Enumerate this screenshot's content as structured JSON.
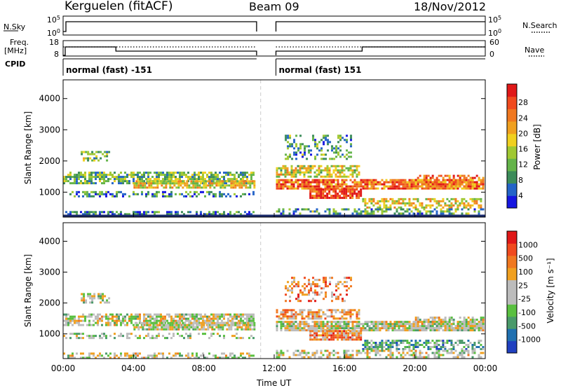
{
  "header": {
    "radar": "Kerguelen (fitACF)",
    "beam": "Beam 09",
    "date": "18/Nov/2012"
  },
  "status_panels": {
    "nsky_label": "N.Sky",
    "nsearch_label": "N.Search",
    "freq_label": "Freq.",
    "freq_unit": "[MHz]",
    "nave_label": "Nave",
    "cpid_label": "CPID",
    "nsky_ticks": [
      "10^5",
      "10^0"
    ],
    "nsearch_ticks": [
      "10^5",
      "10^0"
    ],
    "freq_ticks": [
      "18",
      "8"
    ],
    "nave_ticks": [
      "60",
      "0"
    ],
    "cpid_segments": [
      {
        "text": "normal (fast) -151",
        "start_hour": 0,
        "end_hour": 11.0
      },
      {
        "text": "normal (fast) 151",
        "start_hour": 12.1,
        "end_hour": 24
      }
    ]
  },
  "chart_data": [
    {
      "type": "heatmap",
      "name": "power",
      "ylabel": "Slant Range [km]",
      "yticks": [
        "1000",
        "2000",
        "3000",
        "4000"
      ],
      "ylim": [
        200,
        4600
      ],
      "colorbar_label": "Power [dB]",
      "colorbar_ticks": [
        "4",
        "8",
        "12",
        "16",
        "20",
        "24",
        "28"
      ],
      "colorbar_colors": [
        "#1616e0",
        "#2464c8",
        "#3c8c5a",
        "#64b44a",
        "#a0c832",
        "#f0d020",
        "#f0a020",
        "#f07820",
        "#f04a1e",
        "#e01818"
      ],
      "data_gap_hours": [
        11.0,
        12.1
      ],
      "scatter_bands": [
        {
          "x0": 0.0,
          "x1": 11.0,
          "km": 1500,
          "spread": 180,
          "level": 0.35,
          "density": 0.7
        },
        {
          "x0": 1.0,
          "x1": 2.7,
          "km": 2200,
          "spread": 150,
          "level": 0.4,
          "density": 0.55
        },
        {
          "x0": 4.0,
          "x1": 11.0,
          "km": 1300,
          "spread": 120,
          "level": 0.55,
          "density": 0.8
        },
        {
          "x0": 0.0,
          "x1": 11.0,
          "km": 1000,
          "spread": 100,
          "level": 0.25,
          "density": 0.4
        },
        {
          "x0": 0.0,
          "x1": 11.0,
          "km": 350,
          "spread": 90,
          "level": 0.2,
          "density": 0.5
        },
        {
          "x0": 12.1,
          "x1": 24.0,
          "km": 1300,
          "spread": 150,
          "level": 0.75,
          "density": 0.85
        },
        {
          "x0": 14.0,
          "x1": 17.0,
          "km": 1000,
          "spread": 150,
          "level": 0.9,
          "density": 0.85
        },
        {
          "x0": 12.1,
          "x1": 17.0,
          "km": 1700,
          "spread": 170,
          "level": 0.5,
          "density": 0.65
        },
        {
          "x0": 12.6,
          "x1": 16.5,
          "km": 2500,
          "spread": 400,
          "level": 0.3,
          "density": 0.3
        },
        {
          "x0": 17.0,
          "x1": 24.0,
          "km": 700,
          "spread": 160,
          "level": 0.55,
          "density": 0.55
        },
        {
          "x0": 20.0,
          "x1": 24.0,
          "km": 1400,
          "spread": 180,
          "level": 0.75,
          "density": 0.6
        },
        {
          "x0": 12.1,
          "x1": 24.0,
          "km": 400,
          "spread": 120,
          "level": 0.3,
          "density": 0.45
        }
      ]
    },
    {
      "type": "heatmap",
      "name": "velocity",
      "ylabel": "Slant Range [km]",
      "yticks": [
        "1000",
        "2000",
        "3000",
        "4000"
      ],
      "ylim": [
        200,
        4600
      ],
      "xlabel": "Time UT",
      "xticks": [
        "00:00",
        "04:00",
        "08:00",
        "12:00",
        "16:00",
        "20:00",
        "00:00"
      ],
      "xlim": [
        0,
        24
      ],
      "colorbar_label": "Velocity [m s⁻¹]",
      "colorbar_ticks": [
        "1000",
        "500",
        "100",
        "25",
        "-25",
        "-100",
        "-500",
        "-1000"
      ],
      "colorbar_colors": [
        "#2040c0",
        "#2070b0",
        "#4a9a6a",
        "#5ac040",
        "#bcbcbc",
        "#bcbcbc",
        "#f0a020",
        "#f07820",
        "#f04a1e",
        "#e01818"
      ],
      "data_gap_hours": [
        11.0,
        12.1
      ],
      "scatter_bands": [
        {
          "x0": 0.0,
          "x1": 11.0,
          "km": 1500,
          "spread": 180,
          "level": 0.5,
          "density": 0.7
        },
        {
          "x0": 1.0,
          "x1": 2.7,
          "km": 2200,
          "spread": 150,
          "level": 0.5,
          "density": 0.55
        },
        {
          "x0": 4.0,
          "x1": 11.0,
          "km": 1300,
          "spread": 120,
          "level": 0.5,
          "density": 0.8
        },
        {
          "x0": 0.0,
          "x1": 11.0,
          "km": 1000,
          "spread": 100,
          "level": 0.45,
          "density": 0.4
        },
        {
          "x0": 0.0,
          "x1": 11.0,
          "km": 350,
          "spread": 90,
          "level": 0.5,
          "density": 0.5
        },
        {
          "x0": 12.1,
          "x1": 24.0,
          "km": 1300,
          "spread": 150,
          "level": 0.5,
          "density": 0.85
        },
        {
          "x0": 14.0,
          "x1": 17.0,
          "km": 1000,
          "spread": 150,
          "level": 0.7,
          "density": 0.85
        },
        {
          "x0": 12.1,
          "x1": 17.0,
          "km": 1700,
          "spread": 170,
          "level": 0.65,
          "density": 0.65
        },
        {
          "x0": 12.6,
          "x1": 16.5,
          "km": 2500,
          "spread": 400,
          "level": 0.7,
          "density": 0.35
        },
        {
          "x0": 17.0,
          "x1": 24.0,
          "km": 700,
          "spread": 160,
          "level": 0.3,
          "density": 0.55
        },
        {
          "x0": 20.0,
          "x1": 24.0,
          "km": 1400,
          "spread": 180,
          "level": 0.5,
          "density": 0.6
        },
        {
          "x0": 12.1,
          "x1": 24.0,
          "km": 400,
          "spread": 120,
          "level": 0.5,
          "density": 0.45
        }
      ]
    }
  ]
}
